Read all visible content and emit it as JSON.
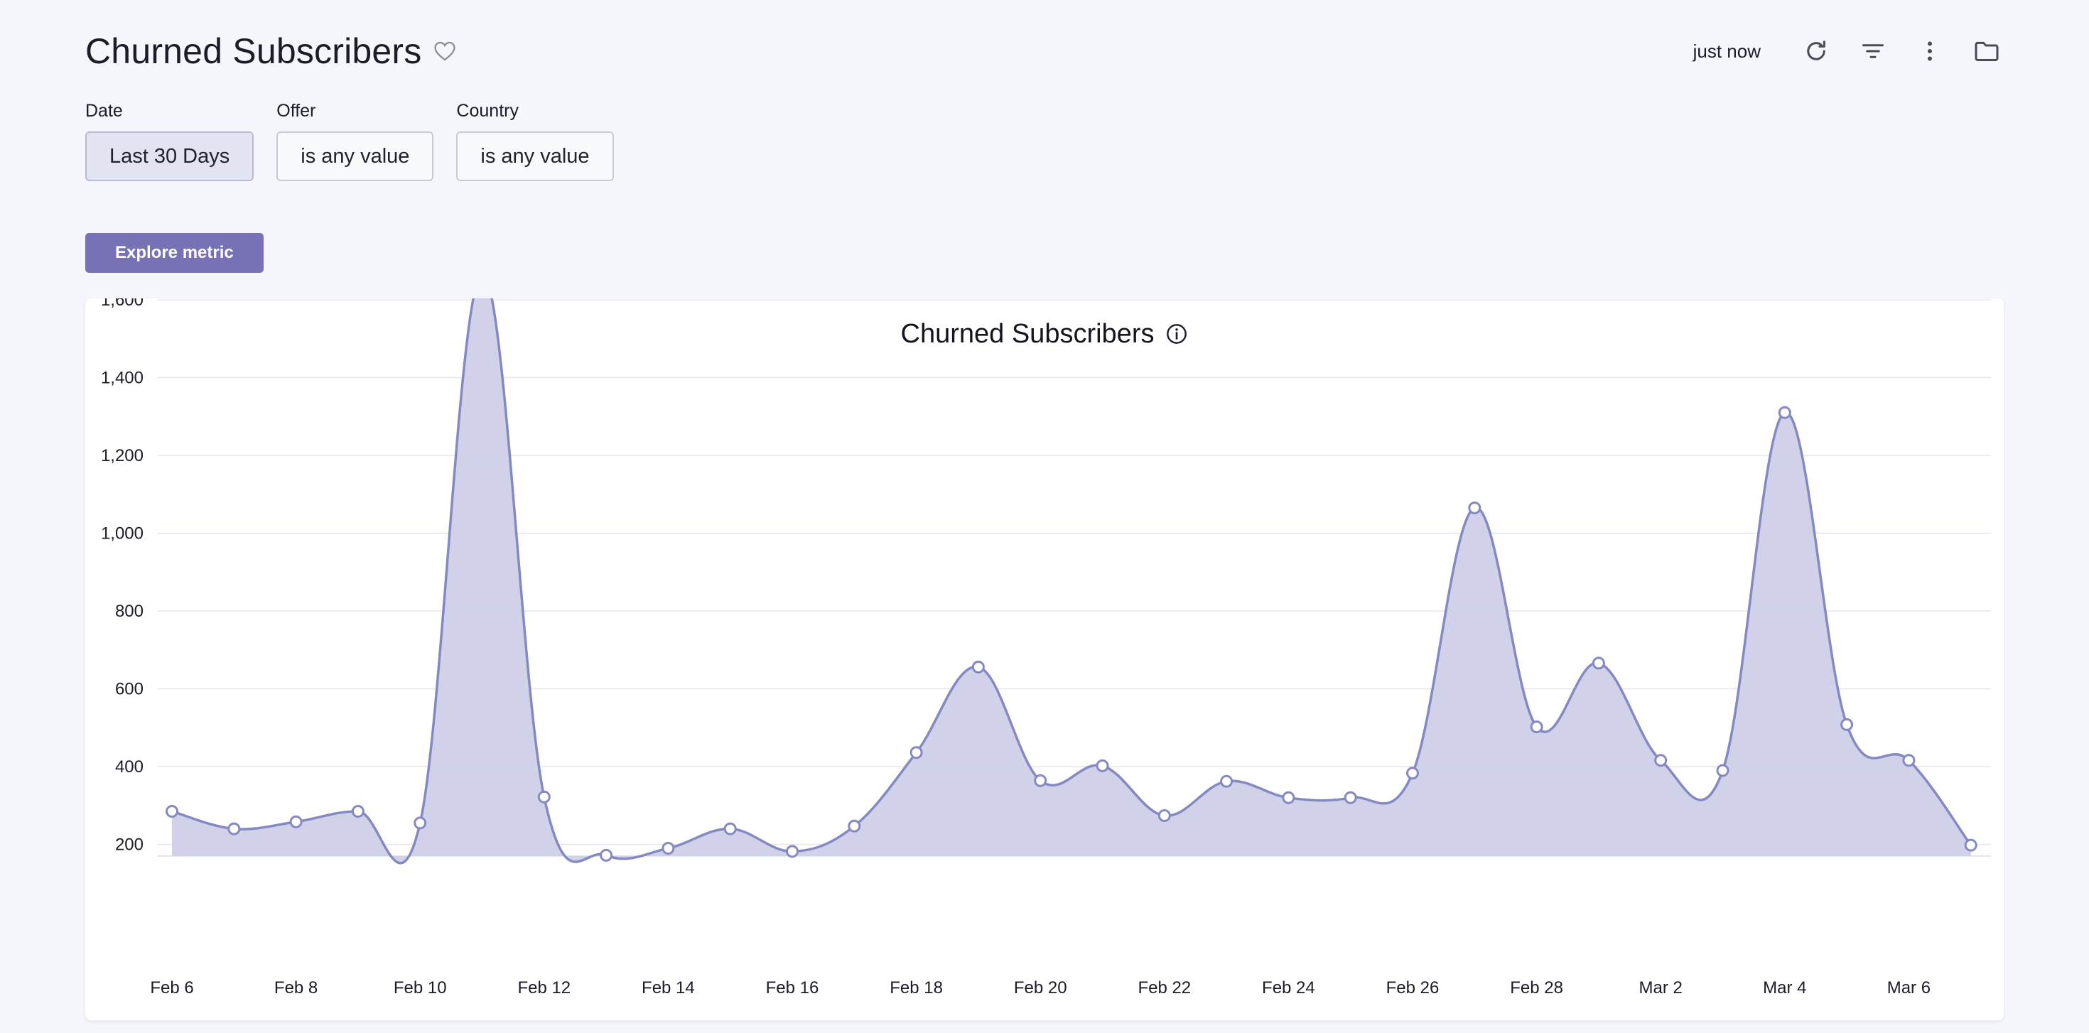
{
  "header": {
    "title": "Churned Subscribers",
    "last_updated": "just now"
  },
  "filters": [
    {
      "label": "Date",
      "value": "Last 30 Days"
    },
    {
      "label": "Offer",
      "value": "is any value"
    },
    {
      "label": "Country",
      "value": "is any value"
    }
  ],
  "actions": {
    "explore_label": "Explore metric"
  },
  "colors": {
    "accent": "#7672b5",
    "series_line": "#8589c2",
    "series_fill": "#cfd0e8"
  },
  "icons": [
    "heart-icon",
    "refresh-icon",
    "filter-icon",
    "more-vertical-icon",
    "folder-icon",
    "info-icon"
  ],
  "chart_data": {
    "type": "area",
    "title": "Churned Subscribers",
    "xlabel": "",
    "ylabel": "",
    "ylim": [
      170,
      1700
    ],
    "y_ticks": [
      200,
      400,
      600,
      800,
      1000,
      1200,
      1400,
      1600
    ],
    "y_tick_labels": [
      "200",
      "400",
      "600",
      "800",
      "1,000",
      "1,200",
      "1,400",
      "1,600"
    ],
    "x_tick_labels": [
      "Feb 6",
      "Feb 8",
      "Feb 10",
      "Feb 12",
      "Feb 14",
      "Feb 16",
      "Feb 18",
      "Feb 20",
      "Feb 22",
      "Feb 24",
      "Feb 26",
      "Feb 28",
      "Mar 2",
      "Mar 4",
      "Mar 6"
    ],
    "grid": true,
    "legend": "none",
    "x": [
      "Feb 6",
      "Feb 7",
      "Feb 8",
      "Feb 9",
      "Feb 10",
      "Feb 11",
      "Feb 12",
      "Feb 13",
      "Feb 14",
      "Feb 15",
      "Feb 16",
      "Feb 17",
      "Feb 18",
      "Feb 19",
      "Feb 20",
      "Feb 21",
      "Feb 22",
      "Feb 23",
      "Feb 24",
      "Feb 25",
      "Feb 26",
      "Feb 27",
      "Feb 28",
      "Mar 1",
      "Mar 2",
      "Mar 3",
      "Mar 4",
      "Mar 5",
      "Mar 6",
      "Mar 7"
    ],
    "series": [
      {
        "values": [
          285,
          240,
          258,
          285,
          255,
          1665,
          322,
          172,
          190,
          240,
          182,
          247,
          436,
          656,
          364,
          402,
          274,
          362,
          320,
          320,
          383,
          1065,
          502,
          666,
          416,
          390,
          1310,
          508,
          416,
          198
        ]
      }
    ]
  }
}
